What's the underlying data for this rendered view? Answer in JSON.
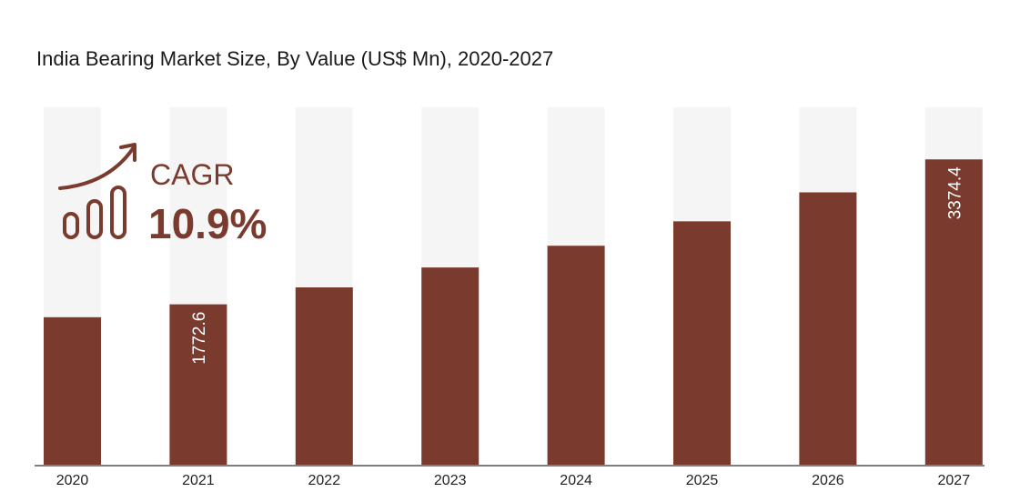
{
  "chart_data": {
    "type": "bar",
    "title": "India Bearing Market Size, By Value (US$ Mn), 2020-2027",
    "categories": [
      "2020",
      "2021",
      "2022",
      "2023",
      "2024",
      "2025",
      "2026",
      "2027"
    ],
    "values": [
      1630,
      1772.6,
      1960,
      2180,
      2420,
      2690,
      3010,
      3374.4
    ],
    "data_labels": [
      null,
      "1772.6",
      null,
      null,
      null,
      null,
      null,
      "3374.4"
    ],
    "ylim": [
      0,
      3950
    ],
    "grid": false,
    "colors": {
      "bar": "#7a3b2e",
      "track": "#f5f5f5",
      "accent": "#7a3b2e"
    },
    "annotation": {
      "label": "CAGR",
      "value": "10.9%",
      "icon": "growth-bars-arrow-icon"
    }
  }
}
